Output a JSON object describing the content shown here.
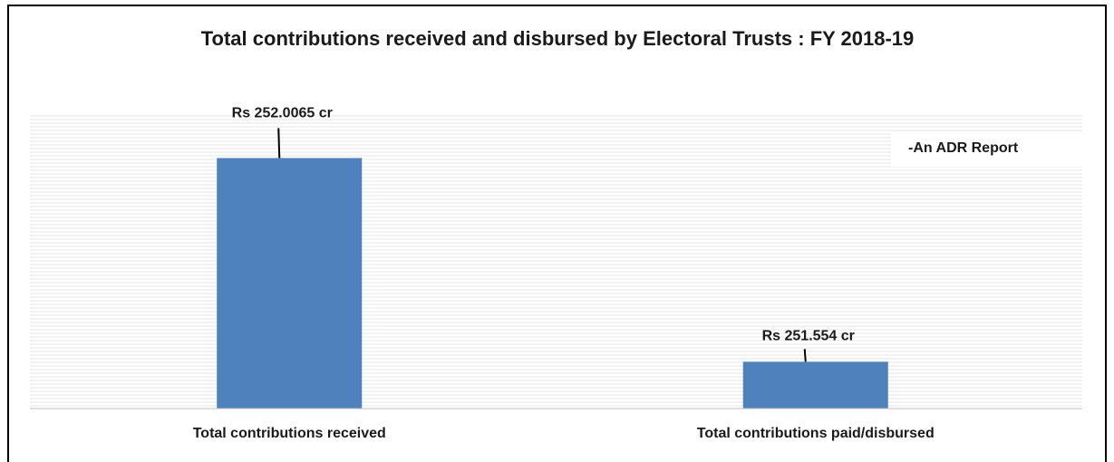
{
  "chart_data": {
    "type": "bar",
    "title": "Total contributions received and disbursed by Electoral Trusts : FY 2018-19",
    "categories": [
      "Total contributions received",
      "Total contributions paid/disbursed"
    ],
    "values": [
      252.0065,
      251.554
    ],
    "data_labels": [
      "Rs 252.0065 cr",
      "Rs 251.554 cr"
    ],
    "annotation": "-An ADR Report",
    "xlabel": "",
    "ylabel": "",
    "ylim": [
      251.45,
      252.1
    ],
    "grid": true,
    "legend": "none",
    "bar_color": "#4f81bd",
    "grid_color": "#e4e4e4",
    "axis_color": "#bfbfbf"
  }
}
